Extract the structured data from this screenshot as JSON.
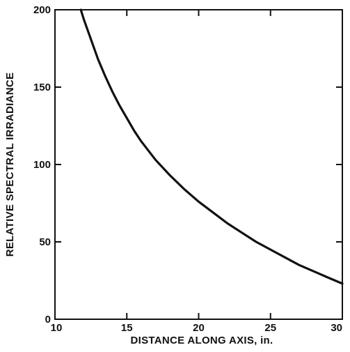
{
  "chart_data": {
    "type": "line",
    "title": "",
    "xlabel": "DISTANCE ALONG AXIS, in.",
    "ylabel": "RELATIVE SPECTRAL IRRADIANCE",
    "xlim": [
      10,
      30
    ],
    "ylim": [
      0,
      200
    ],
    "xticks": [
      10,
      15,
      20,
      25,
      30
    ],
    "yticks": [
      0,
      50,
      100,
      150,
      200
    ],
    "xtick_labels": [
      "10",
      "15",
      "20",
      "25",
      "30"
    ],
    "ytick_labels": [
      "0",
      "50",
      "100",
      "150",
      "200"
    ],
    "grid": false,
    "legend": "none",
    "series": [
      {
        "x": [
          11.8,
          12,
          12.5,
          13,
          13.5,
          14,
          14.5,
          15,
          15.5,
          16,
          17,
          18,
          19,
          20,
          21,
          22,
          23,
          24,
          25,
          26,
          27,
          28,
          29,
          30
        ],
        "y": [
          200,
          194,
          181,
          168,
          157,
          147,
          138,
          130,
          122,
          115,
          103,
          93,
          84,
          76,
          69,
          62,
          56,
          50,
          45,
          40,
          35,
          31,
          27,
          23
        ],
        "color": "#111111"
      }
    ]
  }
}
